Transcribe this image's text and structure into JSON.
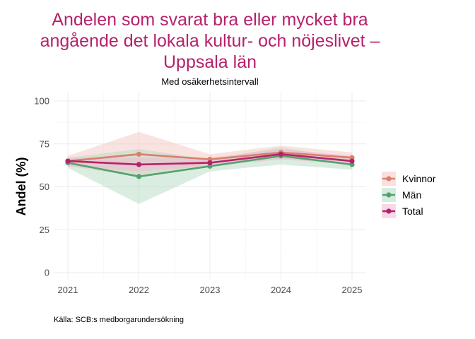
{
  "chart_data": {
    "type": "line",
    "title_lines": [
      "Andelen som svarat bra eller mycket bra",
      "angående det lokala kultur- och nöjeslivet –",
      "Uppsala län"
    ],
    "subtitle": "Med osäkerhetsintervall",
    "ylabel": "Andel (%)",
    "xlabel": "",
    "caption": "Källa: SCB:s medborgarundersökning",
    "x": [
      "2021",
      "2022",
      "2023",
      "2024",
      "2025"
    ],
    "ylim": [
      0,
      100
    ],
    "yticks": [
      "0",
      "25",
      "50",
      "75",
      "100"
    ],
    "legend_position": "right",
    "series": [
      {
        "name": "Kvinnor",
        "color": "#d9806a",
        "band_color": "#f4c7c3",
        "values": [
          65,
          69,
          66,
          70,
          67
        ],
        "lower": [
          62,
          56,
          63,
          66,
          64
        ],
        "upper": [
          68,
          82,
          69,
          74,
          70
        ]
      },
      {
        "name": "Män",
        "color": "#52a36f",
        "band_color": "#b5dcc2",
        "values": [
          64,
          56,
          62,
          68,
          63
        ],
        "lower": [
          61,
          40,
          59,
          63,
          60
        ],
        "upper": [
          67,
          72,
          66,
          73,
          66
        ]
      },
      {
        "name": "Total",
        "color": "#b5226b",
        "band_color": "#f2b8cf",
        "values": [
          65,
          63,
          64,
          69,
          65
        ],
        "lower": [
          62,
          59,
          62,
          66,
          63
        ],
        "upper": [
          67,
          67,
          67,
          72,
          68
        ]
      }
    ]
  }
}
